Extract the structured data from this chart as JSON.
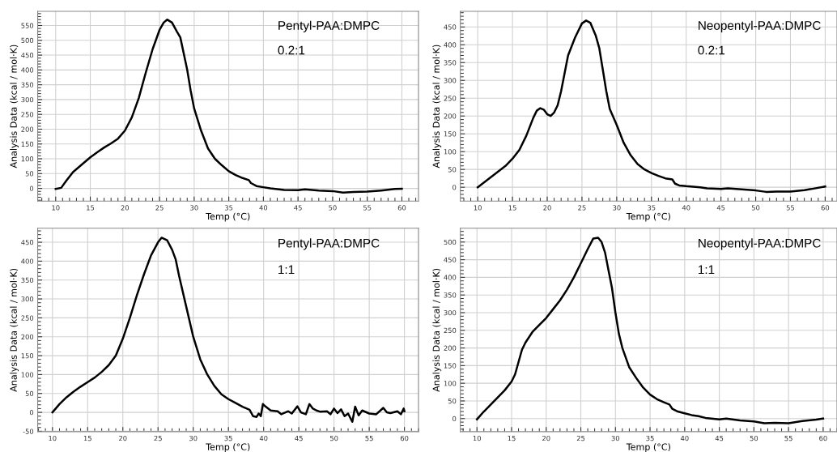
{
  "chart_data": [
    {
      "type": "line",
      "xlabel": "Temp (°C)",
      "ylabel": "Analysis Data (kcal / mol·K)",
      "annotations": [
        "Pentyl-PAA:DMPC",
        "0.2:1"
      ],
      "xlim": [
        7.4,
        62.4
      ],
      "ylim": [
        -43,
        598
      ],
      "xticks": [
        10,
        15,
        20,
        25,
        30,
        35,
        40,
        45,
        50,
        55,
        60
      ],
      "yticks": [
        0,
        50,
        100,
        150,
        200,
        250,
        300,
        350,
        400,
        450,
        500,
        550
      ],
      "grid": true,
      "marker": "none",
      "line_style": "solid",
      "series": [
        {
          "color": "#000000",
          "x": [
            10,
            10.8,
            11.5,
            12.5,
            14,
            15,
            16,
            17,
            18,
            19,
            20,
            21,
            22,
            23,
            24,
            25,
            25.6,
            26.1,
            26.8,
            27.5,
            28,
            29,
            29.5,
            30,
            31,
            32,
            33,
            34,
            35,
            36,
            37,
            37.9,
            38.2,
            39,
            40,
            41,
            43,
            45,
            46,
            48,
            50,
            51.5,
            53,
            55,
            57,
            59,
            60
          ],
          "values": [
            -2,
            2,
            25,
            55,
            85,
            105,
            122,
            138,
            152,
            168,
            195,
            240,
            305,
            390,
            470,
            535,
            560,
            570,
            560,
            530,
            510,
            400,
            330,
            270,
            195,
            135,
            100,
            78,
            58,
            45,
            35,
            28,
            18,
            8,
            4,
            0,
            -5,
            -6,
            -3,
            -7,
            -9,
            -14,
            -12,
            -11,
            -7,
            -2,
            -1
          ]
        }
      ]
    },
    {
      "type": "line",
      "xlabel": "Temp (°C)",
      "ylabel": "Analysis Data (kcal / mol·K)",
      "annotations": [
        "Neopentyl-PAA:DMPC",
        "0.2:1"
      ],
      "xlim": [
        7.5,
        61.7
      ],
      "ylim": [
        -39,
        494
      ],
      "xticks": [
        10,
        15,
        20,
        25,
        30,
        35,
        40,
        45,
        50,
        55,
        60
      ],
      "yticks": [
        0,
        50,
        100,
        150,
        200,
        250,
        300,
        350,
        400,
        450
      ],
      "grid": true,
      "marker": "none",
      "line_style": "solid",
      "series": [
        {
          "color": "#000000",
          "x": [
            10,
            12,
            14,
            15,
            16,
            17,
            18,
            18.5,
            19,
            19.5,
            20,
            20.5,
            21,
            21.5,
            22,
            22.5,
            23,
            24,
            25,
            25.6,
            26.2,
            27,
            27.5,
            28,
            28.5,
            29,
            30,
            31,
            32,
            33,
            34,
            35,
            36,
            37,
            38,
            38.4,
            39,
            40,
            42,
            43,
            45,
            46,
            48,
            50,
            51.5,
            53,
            55,
            57,
            58,
            60
          ],
          "values": [
            0,
            30,
            60,
            80,
            105,
            145,
            195,
            215,
            222,
            218,
            205,
            200,
            210,
            230,
            270,
            320,
            370,
            420,
            460,
            468,
            462,
            425,
            390,
            330,
            270,
            220,
            175,
            125,
            90,
            65,
            50,
            40,
            32,
            25,
            22,
            10,
            5,
            3,
            0,
            -3,
            -5,
            -3,
            -6,
            -9,
            -13,
            -12,
            -12,
            -8,
            -5,
            2
          ]
        }
      ]
    },
    {
      "type": "line",
      "xlabel": "Temp (°C)",
      "ylabel": "Analysis Data (kcal / mol·K)",
      "annotations": [
        "Pentyl-PAA:DMPC",
        "1:1"
      ],
      "xlim": [
        7.9,
        62
      ],
      "ylim": [
        -51,
        487
      ],
      "xticks": [
        10,
        15,
        20,
        25,
        30,
        35,
        40,
        45,
        50,
        55,
        60
      ],
      "yticks": [
        -50,
        0,
        50,
        100,
        150,
        200,
        250,
        300,
        350,
        400,
        450
      ],
      "grid": true,
      "marker": "none",
      "line_style": "solid",
      "series": [
        {
          "color": "#000000",
          "x": [
            10,
            11,
            12,
            13,
            14,
            15,
            16,
            17,
            18,
            19,
            20,
            21,
            22,
            23,
            24,
            25,
            25.5,
            26.3,
            27,
            27.5,
            28,
            29,
            30,
            31,
            32,
            33,
            34,
            35,
            36,
            37,
            38,
            38.5,
            39,
            39.3,
            39.6,
            39.9,
            40.3,
            41,
            42,
            42.5,
            43.5,
            44,
            44.8,
            45.3,
            46,
            46.5,
            47,
            47.5,
            48,
            49,
            49.5,
            50,
            50.5,
            51,
            51.5,
            52,
            52.6,
            53,
            53.5,
            54,
            55,
            56,
            57,
            57.5,
            58,
            59,
            59.5,
            59.9,
            60
          ],
          "values": [
            0,
            22,
            40,
            55,
            68,
            80,
            92,
            107,
            125,
            150,
            195,
            250,
            310,
            365,
            415,
            450,
            462,
            455,
            430,
            405,
            360,
            280,
            200,
            140,
            100,
            70,
            48,
            35,
            25,
            15,
            7,
            -10,
            -12,
            -3,
            -10,
            22,
            15,
            5,
            3,
            -5,
            3,
            -3,
            16,
            0,
            -5,
            22,
            10,
            5,
            2,
            3,
            -5,
            10,
            -2,
            8,
            -10,
            -3,
            -25,
            15,
            -8,
            5,
            -3,
            -5,
            12,
            0,
            -2,
            3,
            -5,
            10,
            3
          ]
        }
      ]
    },
    {
      "type": "line",
      "xlabel": "Temp (°C)",
      "ylabel": "Analysis Data (kcal / mol·K)",
      "annotations": [
        "Neopentyl-PAA:DMPC",
        "1:1"
      ],
      "xlim": [
        7.6,
        62
      ],
      "ylim": [
        -37,
        539
      ],
      "xticks": [
        10,
        15,
        20,
        25,
        30,
        35,
        40,
        45,
        50,
        55,
        60
      ],
      "yticks": [
        0,
        50,
        100,
        150,
        200,
        250,
        300,
        350,
        400,
        450,
        500
      ],
      "grid": true,
      "marker": "none",
      "line_style": "solid",
      "series": [
        {
          "color": "#000000",
          "x": [
            10,
            11,
            12,
            13,
            14,
            15,
            15.5,
            16,
            16.5,
            17,
            18,
            19,
            20,
            21,
            22,
            23,
            24,
            25,
            26,
            26.8,
            27.5,
            28,
            28.5,
            29,
            29.5,
            30,
            30.5,
            31,
            32,
            33,
            34,
            35,
            36,
            37,
            37.8,
            38.2,
            39,
            40,
            41,
            42,
            43,
            45,
            46,
            48,
            50,
            51.5,
            53,
            55,
            57,
            59,
            60
          ],
          "values": [
            -2,
            20,
            40,
            60,
            80,
            105,
            125,
            160,
            195,
            215,
            245,
            265,
            285,
            310,
            335,
            365,
            400,
            440,
            480,
            510,
            512,
            500,
            470,
            420,
            370,
            300,
            240,
            200,
            145,
            115,
            88,
            68,
            55,
            46,
            40,
            28,
            20,
            15,
            10,
            7,
            2,
            -2,
            0,
            -5,
            -8,
            -13,
            -12,
            -13,
            -7,
            -3,
            0
          ]
        }
      ]
    }
  ]
}
